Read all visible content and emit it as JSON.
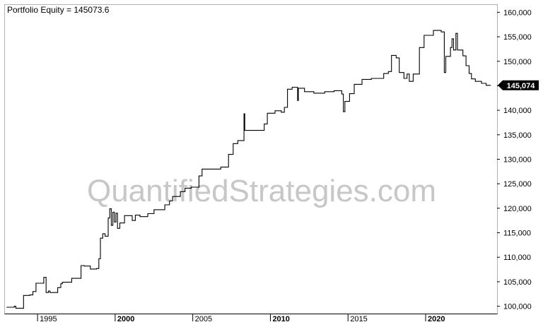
{
  "chart_data": {
    "type": "line",
    "title": "Portfolio Equity = 145073.6",
    "watermark": "QuantifiedStrategies.com",
    "last_value_label": "145,074",
    "xlim": [
      1992.9,
      2024.6
    ],
    "ylim": [
      98500,
      161500
    ],
    "x_ticks": [
      {
        "value": 1995,
        "label": "1995",
        "bold": false
      },
      {
        "value": 2000,
        "label": "2000",
        "bold": true
      },
      {
        "value": 2005,
        "label": "2005",
        "bold": false
      },
      {
        "value": 2010,
        "label": "2010",
        "bold": true
      },
      {
        "value": 2015,
        "label": "2015",
        "bold": false
      },
      {
        "value": 2020,
        "label": "2020",
        "bold": true
      }
    ],
    "y_ticks": [
      {
        "value": 100000,
        "label": "100,000"
      },
      {
        "value": 105000,
        "label": "105,000"
      },
      {
        "value": 110000,
        "label": "110,000"
      },
      {
        "value": 115000,
        "label": "115,000"
      },
      {
        "value": 120000,
        "label": "120,000"
      },
      {
        "value": 125000,
        "label": "125,000"
      },
      {
        "value": 130000,
        "label": "130,000"
      },
      {
        "value": 135000,
        "label": "135,000"
      },
      {
        "value": 140000,
        "label": "140,000"
      },
      {
        "value": 145000,
        "label": "145,000"
      },
      {
        "value": 150000,
        "label": "150,000"
      },
      {
        "value": 155000,
        "label": "155,000"
      },
      {
        "value": 160000,
        "label": "160,000"
      }
    ],
    "colors": {
      "line": "#000000",
      "badge": "#000000",
      "watermark": "#c7c7c7",
      "frame": "#b0b0b0"
    },
    "series": [
      {
        "points": [
          [
            1993.0,
            99800
          ],
          [
            1993.5,
            99800
          ],
          [
            1993.5,
            100000
          ],
          [
            1993.6,
            100000
          ],
          [
            1993.6,
            99600
          ],
          [
            1994.1,
            99600
          ],
          [
            1994.1,
            102200
          ],
          [
            1994.5,
            102200
          ],
          [
            1994.5,
            102300
          ],
          [
            1994.7,
            102300
          ],
          [
            1994.7,
            103000
          ],
          [
            1994.9,
            103000
          ],
          [
            1994.9,
            104700
          ],
          [
            1995.4,
            104700
          ],
          [
            1995.4,
            105900
          ],
          [
            1995.55,
            105900
          ],
          [
            1995.55,
            102800
          ],
          [
            1995.7,
            102800
          ],
          [
            1995.7,
            103100
          ],
          [
            1995.8,
            103100
          ],
          [
            1995.8,
            102800
          ],
          [
            1996.3,
            102800
          ],
          [
            1996.3,
            103800
          ],
          [
            1996.5,
            103800
          ],
          [
            1996.5,
            104600
          ],
          [
            1996.6,
            104600
          ],
          [
            1996.6,
            104900
          ],
          [
            1997.2,
            104900
          ],
          [
            1997.2,
            105700
          ],
          [
            1997.8,
            105700
          ],
          [
            1997.8,
            108300
          ],
          [
            1998.0,
            108300
          ],
          [
            1998.0,
            108200
          ],
          [
            1998.4,
            108200
          ],
          [
            1998.4,
            107600
          ],
          [
            1998.8,
            107600
          ],
          [
            1998.8,
            107700
          ],
          [
            1998.95,
            107700
          ],
          [
            1998.95,
            109700
          ],
          [
            1999.05,
            109700
          ],
          [
            1999.05,
            113900
          ],
          [
            1999.2,
            113900
          ],
          [
            1999.2,
            114800
          ],
          [
            1999.35,
            114800
          ],
          [
            1999.35,
            114300
          ],
          [
            1999.55,
            114300
          ],
          [
            1999.55,
            118000
          ],
          [
            1999.65,
            118000
          ],
          [
            1999.65,
            119900
          ],
          [
            1999.75,
            119900
          ],
          [
            1999.75,
            116500
          ],
          [
            1999.85,
            116500
          ],
          [
            1999.85,
            119200
          ],
          [
            1999.95,
            119200
          ],
          [
            1999.95,
            117200
          ],
          [
            2000.05,
            117200
          ],
          [
            2000.05,
            119000
          ],
          [
            2000.15,
            119000
          ],
          [
            2000.15,
            115900
          ],
          [
            2000.3,
            115900
          ],
          [
            2000.3,
            117000
          ],
          [
            2000.6,
            117000
          ],
          [
            2000.6,
            118500
          ],
          [
            2001.1,
            118500
          ],
          [
            2001.1,
            117500
          ],
          [
            2001.3,
            117500
          ],
          [
            2001.3,
            118600
          ],
          [
            2001.6,
            118600
          ],
          [
            2001.6,
            118300
          ],
          [
            2002.1,
            118300
          ],
          [
            2002.1,
            118900
          ],
          [
            2002.5,
            118900
          ],
          [
            2002.5,
            119700
          ],
          [
            2003.2,
            119700
          ],
          [
            2003.2,
            120700
          ],
          [
            2003.5,
            120700
          ],
          [
            2003.5,
            121500
          ],
          [
            2003.7,
            121500
          ],
          [
            2003.7,
            122400
          ],
          [
            2004.2,
            122400
          ],
          [
            2004.2,
            123400
          ],
          [
            2004.5,
            123400
          ],
          [
            2004.5,
            124100
          ],
          [
            2004.9,
            124100
          ],
          [
            2004.9,
            124300
          ],
          [
            2005.4,
            124300
          ],
          [
            2005.4,
            126600
          ],
          [
            2005.6,
            126600
          ],
          [
            2005.6,
            128000
          ],
          [
            2006.8,
            128000
          ],
          [
            2006.8,
            128400
          ],
          [
            2007.3,
            128400
          ],
          [
            2007.3,
            131000
          ],
          [
            2007.6,
            131000
          ],
          [
            2007.6,
            133200
          ],
          [
            2007.9,
            133200
          ],
          [
            2007.9,
            133800
          ],
          [
            2008.3,
            133800
          ],
          [
            2008.3,
            139300
          ],
          [
            2008.35,
            139300
          ],
          [
            2008.35,
            135900
          ],
          [
            2009.6,
            135900
          ],
          [
            2009.6,
            137200
          ],
          [
            2009.8,
            137200
          ],
          [
            2009.8,
            139400
          ],
          [
            2010.3,
            139400
          ],
          [
            2010.3,
            139900
          ],
          [
            2010.7,
            139900
          ],
          [
            2010.7,
            139600
          ],
          [
            2010.9,
            139600
          ],
          [
            2010.9,
            140600
          ],
          [
            2011.1,
            140600
          ],
          [
            2011.1,
            144300
          ],
          [
            2011.4,
            144300
          ],
          [
            2011.4,
            144700
          ],
          [
            2011.75,
            144700
          ],
          [
            2011.75,
            142000
          ],
          [
            2011.8,
            142000
          ],
          [
            2011.8,
            144500
          ],
          [
            2012.2,
            144500
          ],
          [
            2012.2,
            143800
          ],
          [
            2012.8,
            143800
          ],
          [
            2012.8,
            143500
          ],
          [
            2013.5,
            143500
          ],
          [
            2013.5,
            143800
          ],
          [
            2014.1,
            143800
          ],
          [
            2014.1,
            144000
          ],
          [
            2014.6,
            144000
          ],
          [
            2014.6,
            143300
          ],
          [
            2014.7,
            143300
          ],
          [
            2014.7,
            139700
          ],
          [
            2014.8,
            139700
          ],
          [
            2014.8,
            141800
          ],
          [
            2015.1,
            141800
          ],
          [
            2015.1,
            143400
          ],
          [
            2015.4,
            143400
          ],
          [
            2015.4,
            145300
          ],
          [
            2015.9,
            145300
          ],
          [
            2015.9,
            146300
          ],
          [
            2016.5,
            146300
          ],
          [
            2016.5,
            146500
          ],
          [
            2017.3,
            146500
          ],
          [
            2017.3,
            147500
          ],
          [
            2017.6,
            147500
          ],
          [
            2017.6,
            147900
          ],
          [
            2017.8,
            147900
          ],
          [
            2017.8,
            151200
          ],
          [
            2018.1,
            151200
          ],
          [
            2018.1,
            150700
          ],
          [
            2018.3,
            150700
          ],
          [
            2018.3,
            147700
          ],
          [
            2018.6,
            147700
          ],
          [
            2018.6,
            146500
          ],
          [
            2018.8,
            146500
          ],
          [
            2018.8,
            147400
          ],
          [
            2018.95,
            147400
          ],
          [
            2018.95,
            145900
          ],
          [
            2019.2,
            145900
          ],
          [
            2019.2,
            147400
          ],
          [
            2019.6,
            147400
          ],
          [
            2019.6,
            152800
          ],
          [
            2019.9,
            152800
          ],
          [
            2019.9,
            155300
          ],
          [
            2020.5,
            155300
          ],
          [
            2020.5,
            156300
          ],
          [
            2021.0,
            156300
          ],
          [
            2021.0,
            156000
          ],
          [
            2021.2,
            156000
          ],
          [
            2021.2,
            147700
          ],
          [
            2021.3,
            147700
          ],
          [
            2021.3,
            151000
          ],
          [
            2021.6,
            151000
          ],
          [
            2021.6,
            152800
          ],
          [
            2021.7,
            152800
          ],
          [
            2021.7,
            154600
          ],
          [
            2021.8,
            154600
          ],
          [
            2021.8,
            152300
          ],
          [
            2021.95,
            152300
          ],
          [
            2021.95,
            155700
          ],
          [
            2022.05,
            155700
          ],
          [
            2022.05,
            152300
          ],
          [
            2022.4,
            152300
          ],
          [
            2022.4,
            151100
          ],
          [
            2022.6,
            151100
          ],
          [
            2022.6,
            149100
          ],
          [
            2022.8,
            149100
          ],
          [
            2022.8,
            147500
          ],
          [
            2022.95,
            147500
          ],
          [
            2022.95,
            146400
          ],
          [
            2023.2,
            146400
          ],
          [
            2023.2,
            145900
          ],
          [
            2023.6,
            145900
          ],
          [
            2023.6,
            145500
          ],
          [
            2023.9,
            145500
          ],
          [
            2023.9,
            145100
          ],
          [
            2024.2,
            145100
          ]
        ]
      }
    ]
  }
}
